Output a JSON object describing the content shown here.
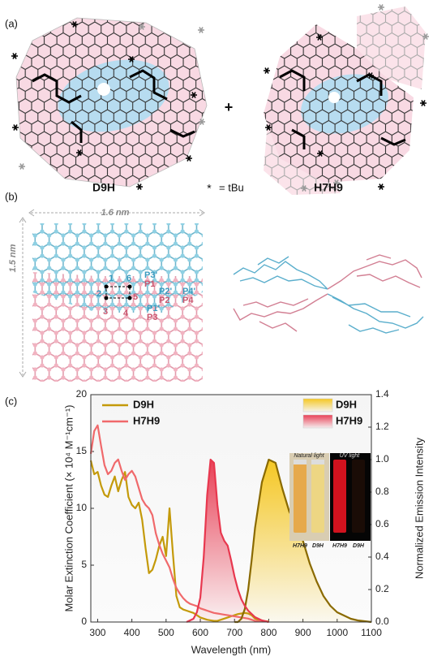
{
  "panel_labels": [
    "(a)",
    "(b)",
    "(c)"
  ],
  "panel_a": {
    "left_name": "D9H",
    "plus": "+",
    "star": "*",
    "star_meaning": "= tBu",
    "right_name": "H7H9"
  },
  "panel_b": {
    "width_label": "1.6 nm",
    "height_label": "1.5 nm",
    "site_labels": [
      "1",
      "6",
      "P3'",
      "P1",
      "2",
      "5",
      "P2'",
      "P2",
      "P4'",
      "P4",
      "3",
      "4",
      "P1'",
      "P3"
    ]
  },
  "chart_data": {
    "type": "line",
    "x_label": "Wavelength (nm)",
    "y_label": "Molar Extinction Coefficient (× 10⁴ M⁻¹cm⁻¹)",
    "y2_label": "Normalized Emission Intensity",
    "x": [
      280,
      290,
      300,
      310,
      320,
      330,
      340,
      350,
      360,
      370,
      380,
      390,
      400,
      410,
      420,
      430,
      440,
      450,
      460,
      470,
      480,
      490,
      500,
      510,
      520,
      530,
      540,
      550,
      560,
      570,
      580,
      590,
      600,
      610,
      620,
      630,
      640,
      650,
      660,
      670,
      680,
      690,
      700,
      710,
      720,
      730,
      740,
      750,
      760,
      780,
      800,
      820,
      840,
      860,
      880,
      900,
      920,
      940,
      960,
      980,
      1000,
      1020,
      1040,
      1060,
      1080,
      1100
    ],
    "xlim": [
      280,
      1100
    ],
    "xticks": [
      300,
      400,
      500,
      600,
      700,
      800,
      900,
      1000,
      1100
    ],
    "ylim": [
      0,
      20
    ],
    "yticks": [
      0,
      5,
      10,
      15,
      20
    ],
    "y2lim": [
      0,
      1.4
    ],
    "y2ticks": [
      {
        "value": 0,
        "label": "0.0"
      },
      0.2,
      0.4,
      0.6,
      0.8,
      {
        "value": 1,
        "label": "1.0"
      },
      1.2,
      1.4
    ],
    "series": [
      {
        "name": "D9H",
        "color": "#c49a0a",
        "values": [
          14.2,
          13,
          13.2,
          12,
          11.2,
          11,
          12,
          12.8,
          11.5,
          12.5,
          13.2,
          11,
          10.3,
          10,
          10.5,
          9,
          6.5,
          4.3,
          4.6,
          5.5,
          6.7,
          7.5,
          5.8,
          10,
          6,
          2.3,
          1.3,
          1.1,
          1,
          0.9,
          0.8,
          0.6,
          0.4,
          0.3,
          0.2,
          0.15,
          0.1,
          0.1,
          0.2,
          0.3,
          0.4,
          0.5,
          0.6,
          0.7,
          0.75,
          0.8,
          0.75,
          0.6,
          0.3,
          0.1,
          0.05,
          null,
          null,
          null,
          null,
          null,
          null,
          null,
          null,
          null,
          null,
          null,
          null,
          null,
          null,
          null
        ]
      },
      {
        "name": "H7H9",
        "color": "#f0696b",
        "values": [
          14.8,
          16.8,
          17.3,
          15.5,
          13.8,
          13,
          13.3,
          14,
          14.3,
          13.3,
          12.5,
          13,
          13.3,
          12.8,
          11.8,
          10.8,
          10.3,
          10,
          9.4,
          7.8,
          6.8,
          6,
          5.4,
          4.8,
          3.8,
          3,
          2.5,
          2.1,
          1.8,
          1.6,
          1.5,
          1.4,
          1.2,
          1.1,
          1,
          0.9,
          0.8,
          0.75,
          0.7,
          0.65,
          0.6,
          0.55,
          0.5,
          0.45,
          0.4,
          0.35,
          0.3,
          0.2,
          0.1,
          0.05,
          null,
          null,
          null,
          null,
          null,
          null,
          null,
          null,
          null,
          null,
          null,
          null,
          null,
          null,
          null,
          null
        ]
      },
      {
        "name": "D9H",
        "color": "#8a6a00",
        "fill": "#f5c518",
        "axis": "y2",
        "values": [
          null,
          null,
          null,
          null,
          null,
          null,
          null,
          null,
          null,
          null,
          null,
          null,
          null,
          null,
          null,
          null,
          null,
          null,
          null,
          null,
          null,
          null,
          null,
          null,
          null,
          null,
          null,
          null,
          null,
          null,
          null,
          null,
          null,
          null,
          null,
          null,
          null,
          null,
          null,
          null,
          null,
          null,
          0,
          0,
          0.02,
          0.08,
          0.2,
          0.38,
          0.58,
          0.86,
          1.0,
          0.98,
          0.82,
          0.68,
          0.6,
          0.5,
          0.36,
          0.25,
          0.16,
          0.1,
          0.06,
          0.04,
          0.02,
          0.01,
          0.005,
          0
        ]
      },
      {
        "name": "H7H9",
        "color": "#e8384f",
        "fill": "#e8384f",
        "axis": "y2",
        "values": [
          null,
          null,
          null,
          null,
          null,
          null,
          null,
          null,
          null,
          null,
          null,
          null,
          null,
          null,
          null,
          null,
          null,
          null,
          null,
          null,
          null,
          null,
          null,
          null,
          null,
          null,
          null,
          null,
          0,
          0.01,
          0.02,
          0.06,
          0.15,
          0.4,
          0.78,
          1.0,
          0.98,
          0.72,
          0.55,
          0.5,
          0.47,
          0.38,
          0.28,
          0.2,
          0.14,
          0.1,
          0.07,
          0.05,
          0.03,
          0.01,
          0,
          null,
          null,
          null,
          null,
          null,
          null,
          null,
          null,
          null,
          null,
          null,
          null,
          null,
          null,
          null
        ]
      }
    ],
    "inset": {
      "left_title": "Natural light",
      "right_title": "UV light",
      "labels": [
        "H7H9",
        "D9H",
        "H7H9",
        "D9H"
      ]
    }
  }
}
